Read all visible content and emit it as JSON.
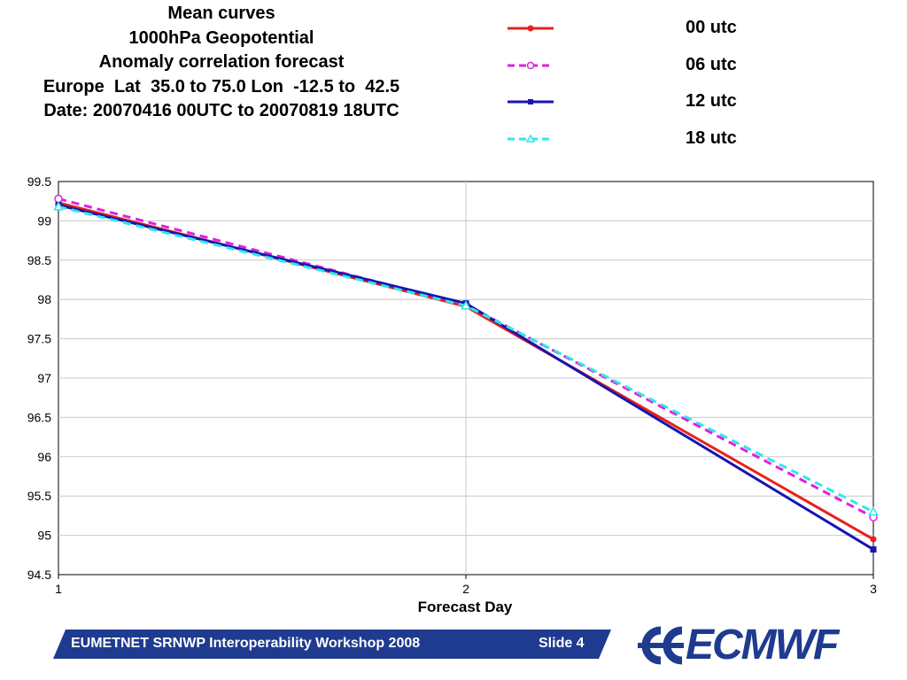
{
  "header": {
    "title_lines": [
      "Mean curves",
      "1000hPa Geopotential",
      "Anomaly correlation forecast",
      "Europe  Lat  35.0 to 75.0 Lon  -12.5 to  42.5",
      "Date: 20070416 00UTC to 20070819 18UTC"
    ]
  },
  "chart_data": {
    "type": "line",
    "title": "Mean curves\n1000hPa Geopotential\nAnomaly correlation forecast\nEurope  Lat  35.0 to 75.0 Lon  -12.5 to  42.5\nDate: 20070416 00UTC to 20070819 18UTC",
    "xlabel": "Forecast Day",
    "ylabel": "",
    "x": [
      1,
      2,
      3
    ],
    "xlim": [
      1,
      3
    ],
    "ylim": [
      94.5,
      99.5
    ],
    "x_ticks": [
      "1",
      "2",
      "3"
    ],
    "y_ticks": [
      "94.5",
      "95",
      "95.5",
      "96",
      "96.5",
      "97",
      "97.5",
      "98",
      "98.5",
      "99",
      "99.5"
    ],
    "y_tick_values": [
      94.5,
      95,
      95.5,
      96,
      96.5,
      97,
      97.5,
      98,
      98.5,
      99,
      99.5
    ],
    "grid": true,
    "legend_position": "top-right",
    "series": [
      {
        "name": "00 utc",
        "values": [
          99.23,
          97.91,
          94.95
        ],
        "color": "#e8211a",
        "dash": "solid",
        "marker": "filled-circle"
      },
      {
        "name": "06 utc",
        "values": [
          99.28,
          97.93,
          95.23
        ],
        "color": "#e020e0",
        "dash": "dashed",
        "marker": "open-circle"
      },
      {
        "name": "12 utc",
        "values": [
          99.2,
          97.95,
          94.82
        ],
        "color": "#1515b0",
        "dash": "solid",
        "marker": "filled-square"
      },
      {
        "name": "18 utc",
        "values": [
          99.18,
          97.92,
          95.3
        ],
        "color": "#2ee8e8",
        "dash": "dashed",
        "marker": "open-triangle"
      }
    ]
  },
  "footer": {
    "banner_text": "EUMETNET SRNWP Interoperability Workshop 2008",
    "slide_label": "Slide 4",
    "banner_color": "#1f3b8f"
  },
  "logo": {
    "text": "ECMWF",
    "color": "#1f3b8f"
  }
}
